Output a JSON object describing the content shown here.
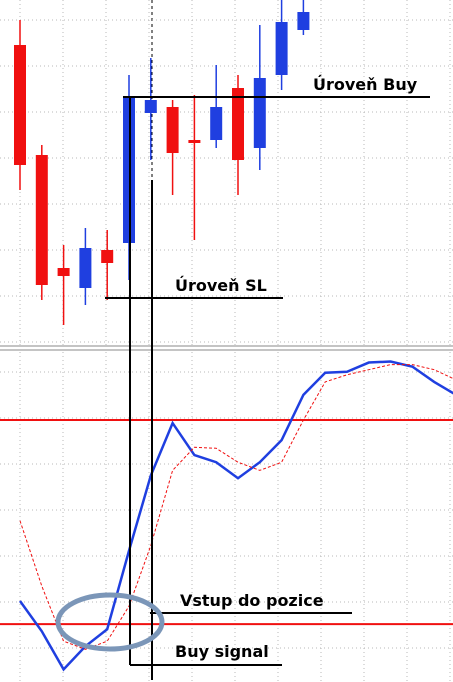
{
  "chart_data": [
    {
      "type": "candlestick",
      "categories": [
        null,
        null,
        null,
        null,
        null,
        null,
        null,
        null,
        null,
        null,
        null,
        null,
        null,
        null
      ],
      "open": [
        300,
        190,
        77,
        57,
        95,
        102,
        232,
        238,
        205,
        205,
        257,
        197,
        270,
        315
      ],
      "high": [
        325,
        200,
        100,
        117,
        115,
        270,
        287,
        245,
        250,
        280,
        270,
        320,
        345,
        345
      ],
      "low": [
        155,
        45,
        20,
        40,
        45,
        65,
        185,
        150,
        105,
        197,
        150,
        175,
        255,
        310
      ],
      "close": [
        180,
        60,
        69,
        97,
        82,
        248,
        245,
        192,
        202,
        238,
        185,
        267,
        323,
        333
      ],
      "up_color": "#1f3fe0",
      "down_color": "#f01010",
      "ylim": [
        0,
        345
      ],
      "grid": true,
      "annotations": [
        "Úroveň Buy",
        "Úroveň SL"
      ]
    },
    {
      "type": "line",
      "categories": [
        null,
        null,
        null,
        null,
        null,
        null,
        null,
        null,
        null,
        null,
        null,
        null,
        null,
        null,
        null,
        null,
        null,
        null,
        null,
        null,
        null
      ],
      "series": [
        {
          "color": "#1f3fe0",
          "values": [
            26.8,
            17.9,
            6.7,
            13.5,
            18.5,
            41.6,
            63.7,
            79.1,
            69.7,
            67.6,
            62.9,
            67.6,
            74.1,
            87.4,
            93.9,
            94.2,
            96.9,
            97.2,
            95.7,
            91.2,
            87.4
          ]
        },
        {
          "color": "#f01010",
          "dashed": true,
          "values": [
            50.4,
            31.2,
            15.0,
            12.6,
            15.0,
            25.3,
            43.1,
            65.2,
            72.0,
            71.7,
            67.6,
            65.2,
            67.6,
            80.0,
            91.2,
            93.3,
            94.8,
            96.3,
            96.3,
            94.8,
            91.8
          ]
        }
      ],
      "levels": [
        80,
        20
      ],
      "level_color": "#f01010",
      "ylim": [
        3,
        100
      ],
      "grid": true,
      "annotations": [
        "Vstup do pozice",
        "Buy signal"
      ]
    }
  ]
}
